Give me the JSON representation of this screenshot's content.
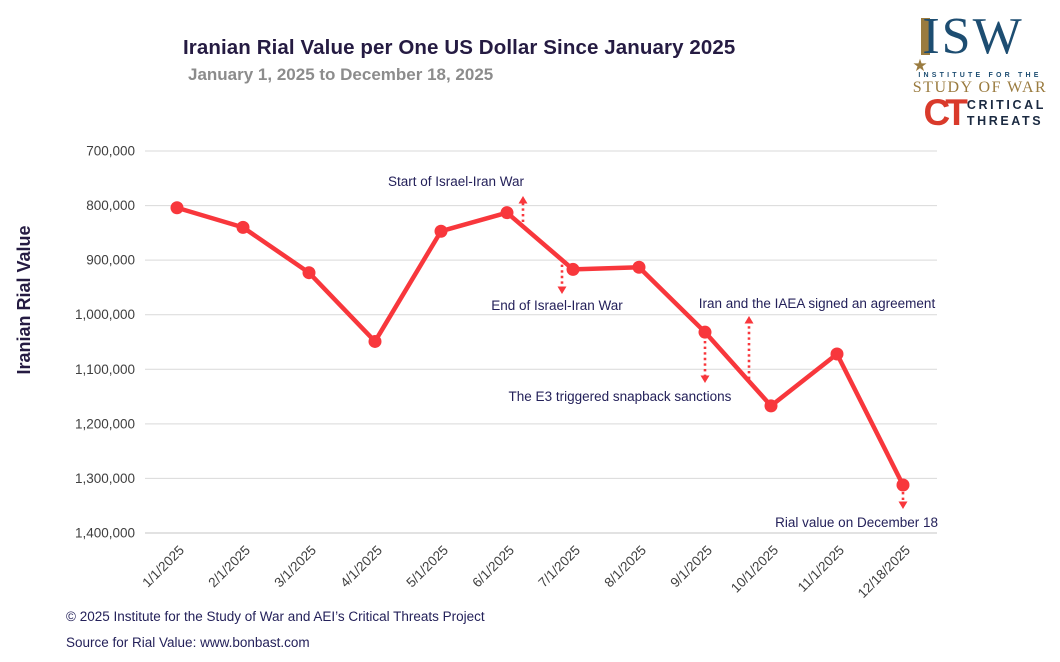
{
  "header": {
    "title": "Iranian Rial Value per One US Dollar Since January 2025",
    "subtitle": "January 1, 2025 to December 18, 2025"
  },
  "logos": {
    "isw": {
      "acronym": "ISW",
      "tagline_top": "INSTITUTE FOR THE",
      "tagline_bottom": "STUDY OF WAR",
      "star": "★",
      "blue": "#1d4d71",
      "gold": "#9a7b3f"
    },
    "ct": {
      "acronym": "CT",
      "name_top": "CRITICAL",
      "name_bottom": "THREATS",
      "red": "#d93a2b",
      "navy": "#1b2a41"
    }
  },
  "chart_data": {
    "type": "line",
    "title": "Iranian Rial Value per One US Dollar Since January 2025",
    "subtitle": "January 1, 2025 to December 18, 2025",
    "xlabel": "",
    "ylabel": "Iranian Rial Value",
    "x": [
      "1/1/2025",
      "2/1/2025",
      "3/1/2025",
      "4/1/2025",
      "5/1/2025",
      "6/1/2025",
      "7/1/2025",
      "8/1/2025",
      "9/1/2025",
      "10/1/2025",
      "11/1/2025",
      "12/18/2025"
    ],
    "series": [
      {
        "name": "Rial value per one US dollar",
        "values": [
          804000,
          840000,
          923000,
          1049000,
          847000,
          813000,
          917000,
          913000,
          1032000,
          1167000,
          1072000,
          1312000
        ]
      }
    ],
    "y_axis": {
      "min": 700000,
      "max": 1400000,
      "step": 100000,
      "inverted": true,
      "tick_labels": [
        "700,000",
        "800,000",
        "900,000",
        "1,000,000",
        "1,100,000",
        "1,200,000",
        "1,300,000",
        "1,400,000"
      ]
    },
    "grid": true,
    "legend": "none",
    "line_color": "#f8373c",
    "marker": "circle",
    "annotations": [
      {
        "label": "Start of Israel-Iran War",
        "near_x": "6/1/2025",
        "arrow_direction": "up"
      },
      {
        "label": "End of Israel-Iran War",
        "near_x": "7/1/2025",
        "arrow_direction": "down"
      },
      {
        "label": "Iran and the IAEA signed an agreement",
        "near_x": "10/1/2025",
        "arrow_direction": "up"
      },
      {
        "label": "The E3 triggered snapback sanctions",
        "near_x": "9/1/2025",
        "arrow_direction": "down"
      },
      {
        "label": "Rial value on December 18",
        "near_x": "12/18/2025",
        "arrow_direction": "down"
      }
    ],
    "annotation_color": "#24215a",
    "gridline_color": "#d9d9d9"
  },
  "footer": {
    "copyright": "© 2025 Institute for the Study of War and AEI’s Critical Threats Project",
    "source": "Source for Rial Value: www.bonbast.com"
  }
}
